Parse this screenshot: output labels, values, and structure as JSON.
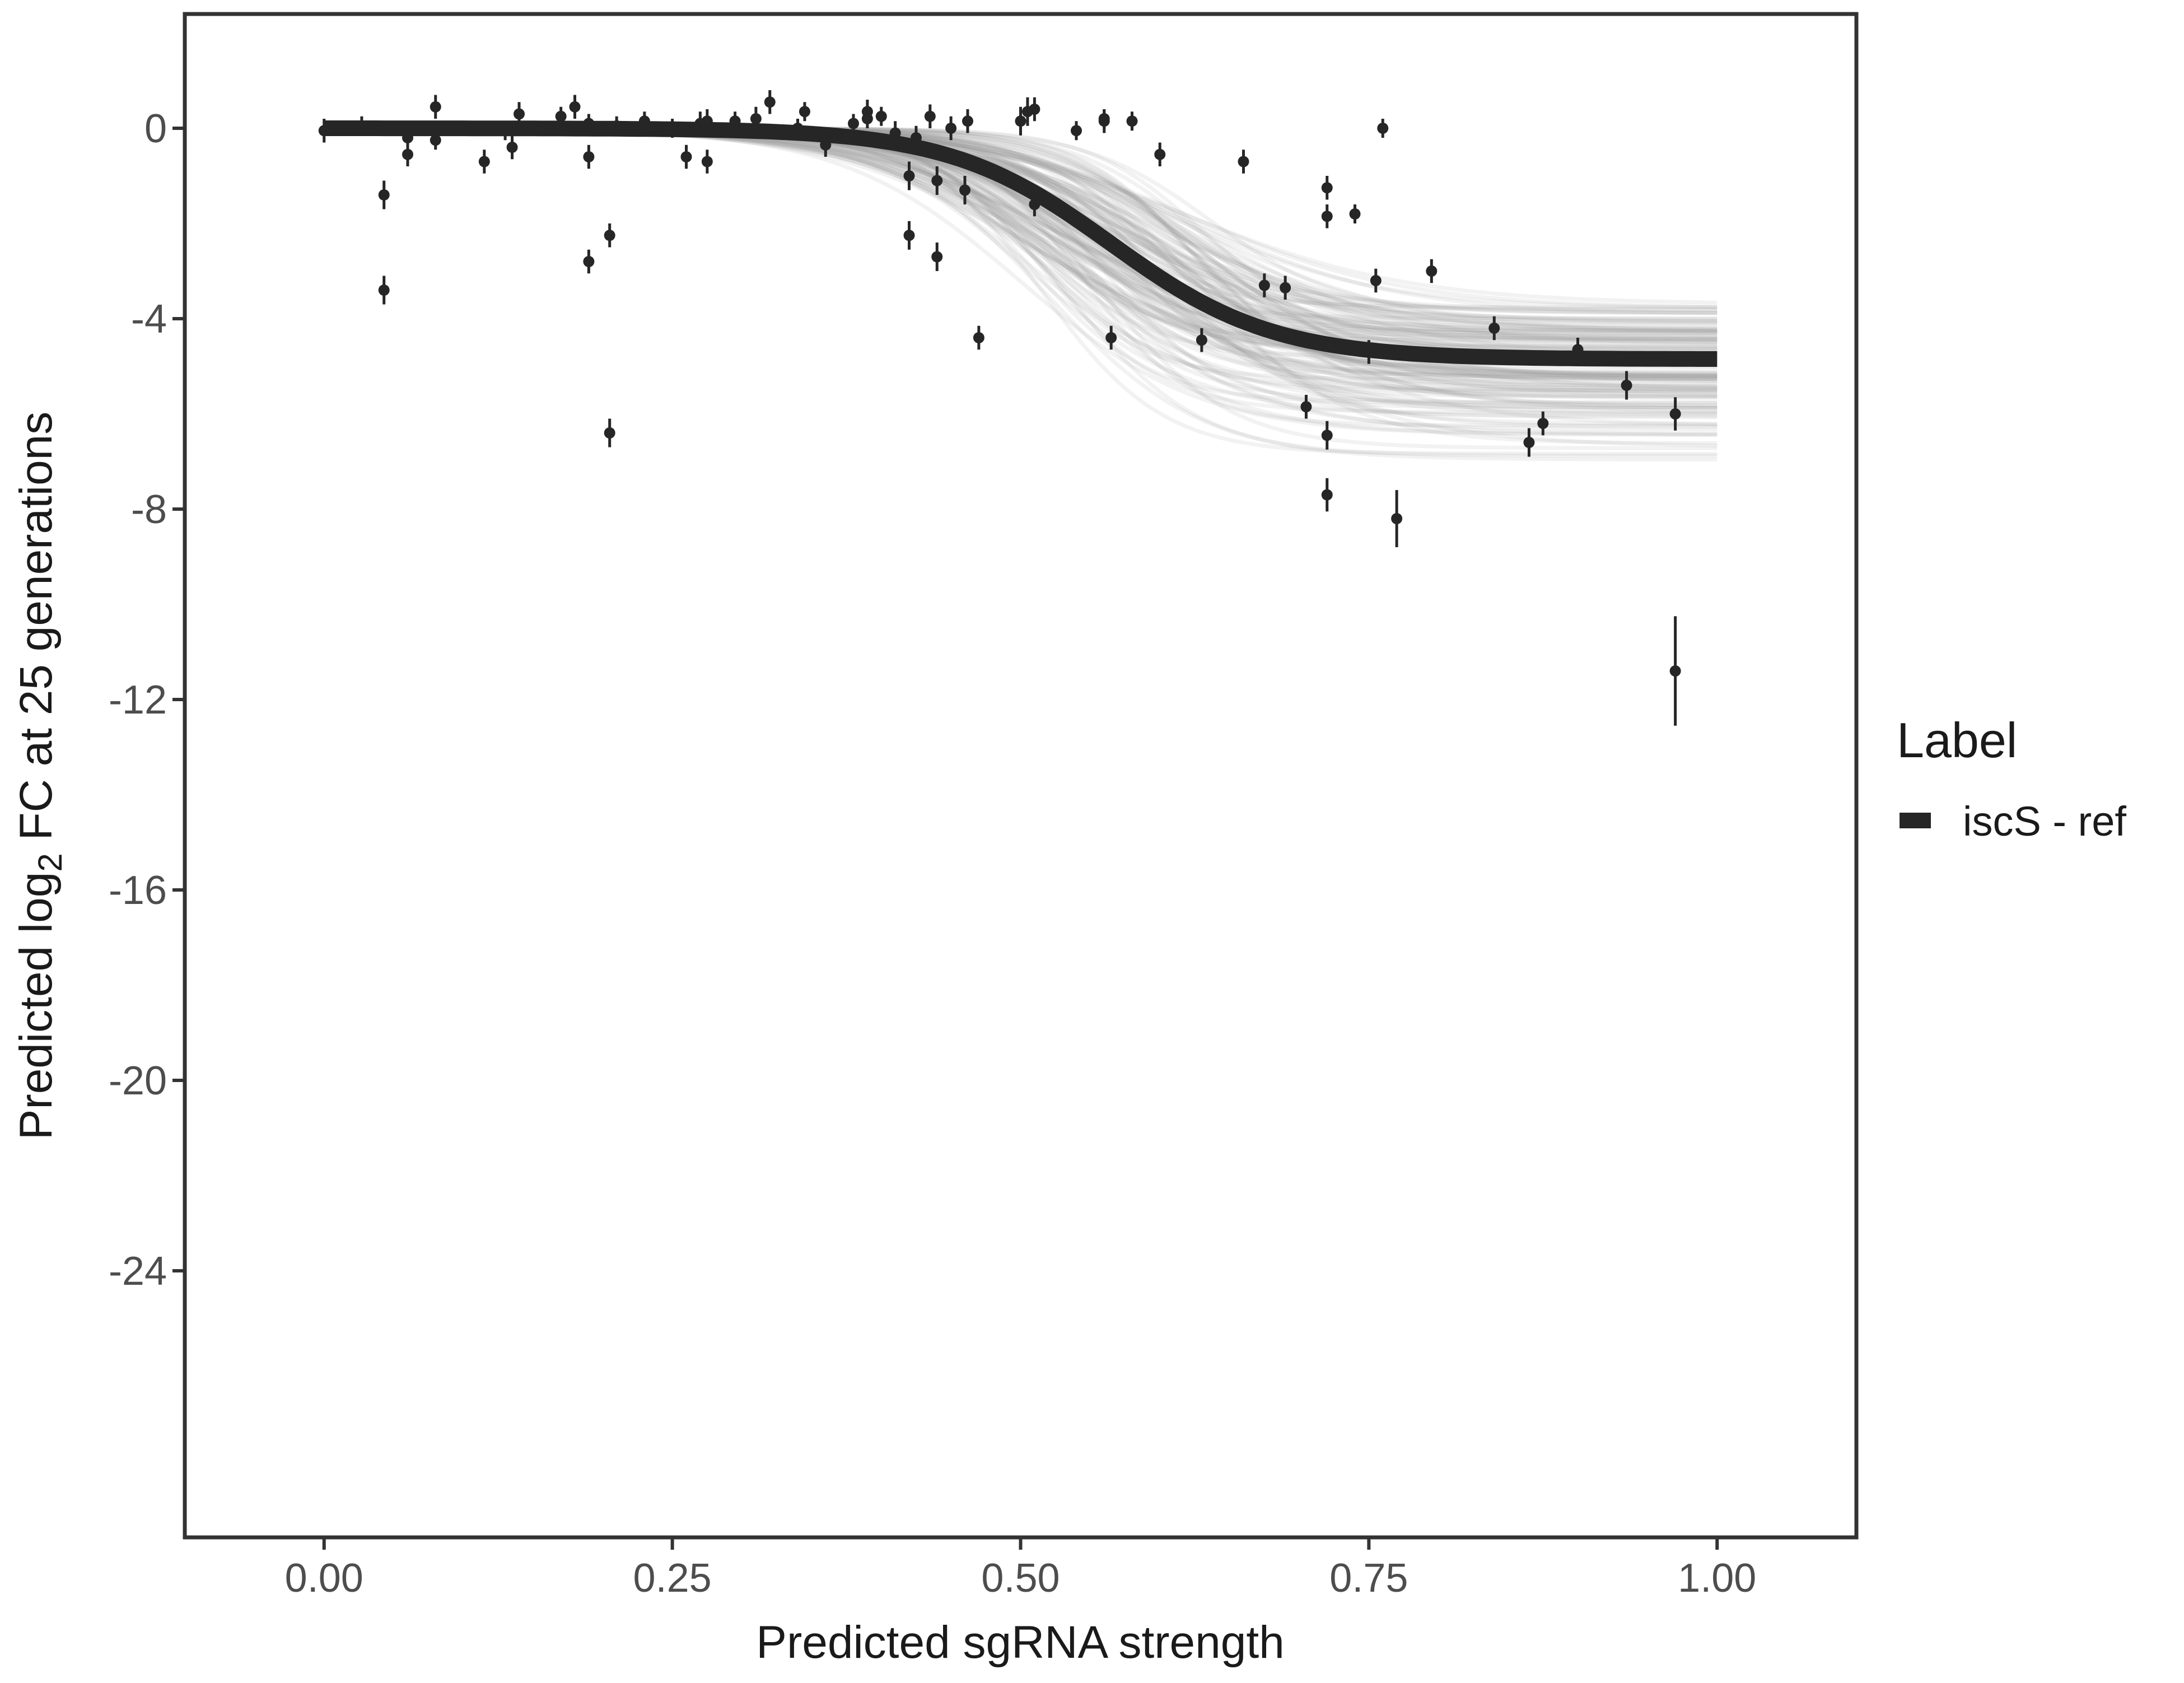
{
  "chart_data": {
    "type": "scatter",
    "title": "",
    "xlabel": "Predicted sgRNA strength",
    "ylabel": {
      "prefix": "Predicted  log",
      "subscript": "2",
      "suffix": " FC at 25 generations"
    },
    "xlim": [
      -0.1,
      1.1
    ],
    "ylim": [
      -29.6,
      2.4
    ],
    "x_ticks": [
      {
        "value": 0,
        "label": "0.00"
      },
      {
        "value": 0.25,
        "label": "0.25"
      },
      {
        "value": 0.5,
        "label": "0.50"
      },
      {
        "value": 0.75,
        "label": "0.75"
      },
      {
        "value": 1,
        "label": "1.00"
      }
    ],
    "y_ticks": [
      {
        "value": 0,
        "label": "0"
      },
      {
        "value": -4,
        "label": "-4"
      },
      {
        "value": -8,
        "label": "-8"
      },
      {
        "value": -12,
        "label": "-12"
      },
      {
        "value": -16,
        "label": "-16"
      },
      {
        "value": -20,
        "label": "-20"
      },
      {
        "value": -24,
        "label": "-24"
      }
    ],
    "grid": false,
    "legend": {
      "title": "Label",
      "position": "right",
      "entries": [
        {
          "label": "iscS - ref",
          "color": "#262626"
        }
      ]
    },
    "fit_curve": {
      "name": "iscS - ref",
      "model": "logistic",
      "upper": 0.0,
      "lower": -4.85,
      "midpoint": 0.565,
      "scale": 0.058,
      "color": "#262626"
    },
    "posterior_band": {
      "description": "posterior draws of the fitted curve",
      "color": "#9e9e9e",
      "lower_asymptote_range": [
        -7.0,
        -3.4
      ],
      "midpoint_range": [
        0.5,
        0.64
      ]
    },
    "points": [
      {
        "x": 0.0,
        "y": -0.05,
        "err": 0.25
      },
      {
        "x": 0.027,
        "y": 0.05,
        "err": 0.2
      },
      {
        "x": 0.043,
        "y": -1.4,
        "err": 0.3
      },
      {
        "x": 0.043,
        "y": -3.4,
        "err": 0.3
      },
      {
        "x": 0.06,
        "y": -0.55,
        "err": 0.25
      },
      {
        "x": 0.06,
        "y": -0.2,
        "err": 0.2
      },
      {
        "x": 0.08,
        "y": 0.45,
        "err": 0.25
      },
      {
        "x": 0.08,
        "y": -0.25,
        "err": 0.2
      },
      {
        "x": 0.115,
        "y": -0.7,
        "err": 0.25
      },
      {
        "x": 0.13,
        "y": -0.05,
        "err": 0.2
      },
      {
        "x": 0.135,
        "y": -0.4,
        "err": 0.25
      },
      {
        "x": 0.14,
        "y": 0.3,
        "err": 0.25
      },
      {
        "x": 0.17,
        "y": 0.25,
        "err": 0.2
      },
      {
        "x": 0.18,
        "y": 0.45,
        "err": 0.25
      },
      {
        "x": 0.19,
        "y": -0.6,
        "err": 0.25
      },
      {
        "x": 0.19,
        "y": 0.1,
        "err": 0.2
      },
      {
        "x": 0.19,
        "y": -2.8,
        "err": 0.25
      },
      {
        "x": 0.205,
        "y": -2.25,
        "err": 0.25
      },
      {
        "x": 0.205,
        "y": -6.4,
        "err": 0.3
      },
      {
        "x": 0.21,
        "y": 0.05,
        "err": 0.2
      },
      {
        "x": 0.23,
        "y": 0.15,
        "err": 0.2
      },
      {
        "x": 0.25,
        "y": 0.0,
        "err": 0.2
      },
      {
        "x": 0.26,
        "y": -0.6,
        "err": 0.25
      },
      {
        "x": 0.27,
        "y": 0.1,
        "err": 0.25
      },
      {
        "x": 0.275,
        "y": -0.7,
        "err": 0.25
      },
      {
        "x": 0.275,
        "y": 0.15,
        "err": 0.25
      },
      {
        "x": 0.295,
        "y": 0.15,
        "err": 0.2
      },
      {
        "x": 0.31,
        "y": 0.2,
        "err": 0.25
      },
      {
        "x": 0.32,
        "y": 0.55,
        "err": 0.25
      },
      {
        "x": 0.34,
        "y": 0.0,
        "err": 0.2
      },
      {
        "x": 0.345,
        "y": 0.35,
        "err": 0.2
      },
      {
        "x": 0.36,
        "y": -0.35,
        "err": 0.25
      },
      {
        "x": 0.38,
        "y": 0.1,
        "err": 0.2
      },
      {
        "x": 0.39,
        "y": 0.35,
        "err": 0.25
      },
      {
        "x": 0.39,
        "y": 0.2,
        "err": 0.2
      },
      {
        "x": 0.4,
        "y": 0.25,
        "err": 0.2
      },
      {
        "x": 0.41,
        "y": -0.1,
        "err": 0.25
      },
      {
        "x": 0.42,
        "y": -1.0,
        "err": 0.3
      },
      {
        "x": 0.42,
        "y": -2.25,
        "err": 0.3
      },
      {
        "x": 0.425,
        "y": -0.2,
        "err": 0.25
      },
      {
        "x": 0.435,
        "y": 0.25,
        "err": 0.25
      },
      {
        "x": 0.44,
        "y": -1.1,
        "err": 0.3
      },
      {
        "x": 0.44,
        "y": -2.7,
        "err": 0.3
      },
      {
        "x": 0.45,
        "y": 0.0,
        "err": 0.25
      },
      {
        "x": 0.46,
        "y": -1.3,
        "err": 0.3
      },
      {
        "x": 0.462,
        "y": 0.15,
        "err": 0.25
      },
      {
        "x": 0.47,
        "y": -4.4,
        "err": 0.25
      },
      {
        "x": 0.5,
        "y": 0.15,
        "err": 0.3
      },
      {
        "x": 0.505,
        "y": 0.35,
        "err": 0.3
      },
      {
        "x": 0.51,
        "y": 0.4,
        "err": 0.25
      },
      {
        "x": 0.51,
        "y": -1.6,
        "err": 0.25
      },
      {
        "x": 0.54,
        "y": -0.05,
        "err": 0.2
      },
      {
        "x": 0.56,
        "y": 0.15,
        "err": 0.25
      },
      {
        "x": 0.56,
        "y": 0.2,
        "err": 0.2
      },
      {
        "x": 0.565,
        "y": -4.4,
        "err": 0.25
      },
      {
        "x": 0.58,
        "y": 0.15,
        "err": 0.2
      },
      {
        "x": 0.6,
        "y": -0.55,
        "err": 0.25
      },
      {
        "x": 0.63,
        "y": -4.45,
        "err": 0.25
      },
      {
        "x": 0.66,
        "y": -0.7,
        "err": 0.25
      },
      {
        "x": 0.675,
        "y": -3.3,
        "err": 0.25
      },
      {
        "x": 0.69,
        "y": -3.35,
        "err": 0.25
      },
      {
        "x": 0.705,
        "y": -5.85,
        "err": 0.25
      },
      {
        "x": 0.72,
        "y": -1.25,
        "err": 0.25
      },
      {
        "x": 0.72,
        "y": -1.85,
        "err": 0.25
      },
      {
        "x": 0.72,
        "y": -6.45,
        "err": 0.3
      },
      {
        "x": 0.72,
        "y": -7.7,
        "err": 0.35
      },
      {
        "x": 0.74,
        "y": -1.8,
        "err": 0.2
      },
      {
        "x": 0.75,
        "y": -4.7,
        "err": 0.25
      },
      {
        "x": 0.755,
        "y": -3.2,
        "err": 0.25
      },
      {
        "x": 0.76,
        "y": 0.0,
        "err": 0.2
      },
      {
        "x": 0.77,
        "y": -8.2,
        "err": 0.6
      },
      {
        "x": 0.795,
        "y": -3.0,
        "err": 0.25
      },
      {
        "x": 0.84,
        "y": -4.2,
        "err": 0.25
      },
      {
        "x": 0.865,
        "y": -6.6,
        "err": 0.3
      },
      {
        "x": 0.875,
        "y": -6.2,
        "err": 0.25
      },
      {
        "x": 0.9,
        "y": -4.65,
        "err": 0.25
      },
      {
        "x": 0.935,
        "y": -5.4,
        "err": 0.3
      },
      {
        "x": 0.97,
        "y": -6.0,
        "err": 0.35
      },
      {
        "x": 0.97,
        "y": -11.4,
        "err": 1.15
      }
    ]
  }
}
